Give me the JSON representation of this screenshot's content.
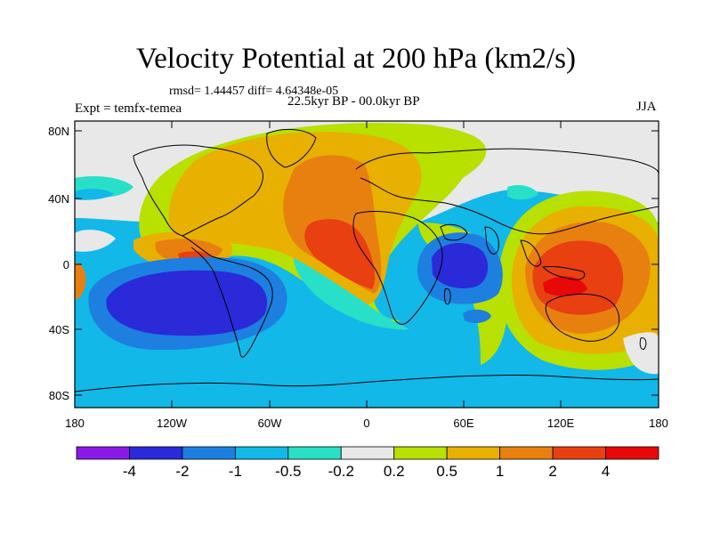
{
  "title": "Velocity Potential at 200 hPa (km2/s)",
  "stats": "rmsd= 1.44457 diff= 4.64348e-05",
  "experiment": "Expt = temfx-temea",
  "period": "22.5kyr BP - 00.0kyr BP",
  "season": "JJA",
  "lat_labels": [
    "80N",
    "40N",
    "0",
    "40S",
    "80S"
  ],
  "lon_labels": [
    "180",
    "120W",
    "60W",
    "0",
    "60E",
    "120E",
    "180"
  ],
  "colorbar": {
    "labels": [
      "-4",
      "-2",
      "-1",
      "-0.5",
      "-0.2",
      "0.2",
      "0.5",
      "1",
      "2",
      "4"
    ],
    "colors": [
      "#8b1ae8",
      "#2a2ad8",
      "#1d7fe0",
      "#12b8e8",
      "#28e0c8",
      "#e8e8e8",
      "#b8e000",
      "#e8b000",
      "#e88010",
      "#e84010",
      "#e80808"
    ]
  }
}
